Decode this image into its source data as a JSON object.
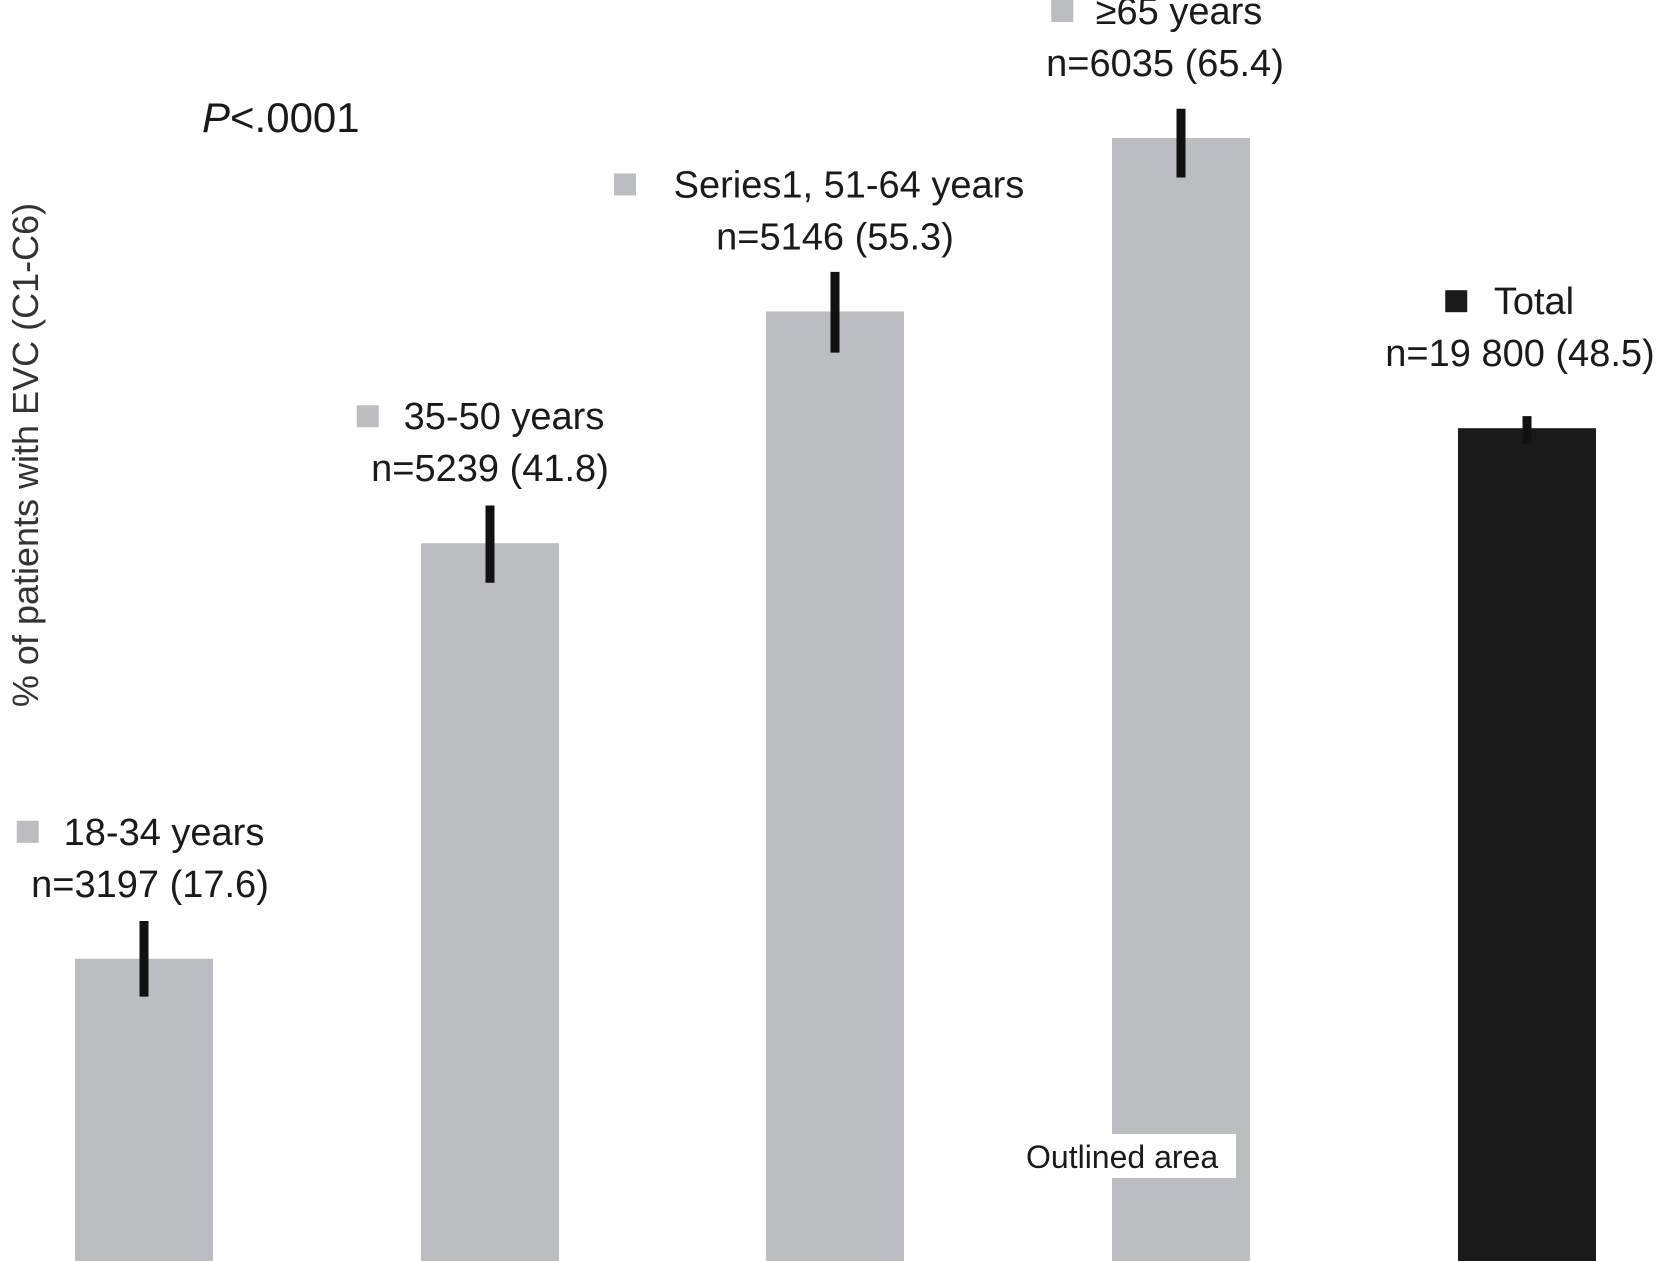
{
  "chart_data": {
    "type": "bar",
    "ylabel": "% of patients with EVC (C1-C6)",
    "annotation": {
      "p_italic": "P",
      "p_rest": "<.0001"
    },
    "note_label": "Outlined area",
    "ylim": [
      0,
      70
    ],
    "grid": false,
    "categories": [
      "18-34 years",
      "35-50 years",
      "Series1, 51-64 years",
      "≥65 years",
      "Total"
    ],
    "n_labels": [
      "n=3197 (17.6)",
      "n=5239 (41.8)",
      "n=5146 (55.3)",
      "n=6035 (65.4)",
      "n=19 800 (48.5)"
    ],
    "values": [
      17.6,
      41.8,
      55.3,
      65.4,
      48.5
    ],
    "error_ranges": [
      [
        15.4,
        19.8
      ],
      [
        39.5,
        44.0
      ],
      [
        52.9,
        57.6
      ],
      [
        63.1,
        67.1
      ],
      [
        47.6,
        49.2
      ]
    ],
    "colors": [
      "#bcbdc0",
      "#bcbdc0",
      "#bcbdc0",
      "#bcbdc0",
      "#1a1a1a"
    ],
    "error_bar_color": "#111111"
  }
}
